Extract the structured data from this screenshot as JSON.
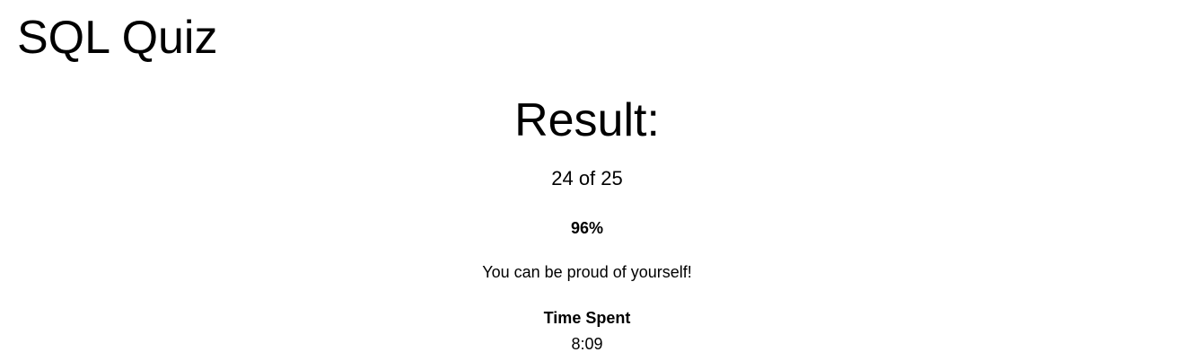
{
  "app": {
    "title": "SQL Quiz"
  },
  "result": {
    "heading": "Result:",
    "score_text": "24 of 25",
    "correct": 24,
    "total": 25,
    "percent_text": "96%",
    "message": "You can be proud of yourself!",
    "time_spent_label": "Time Spent",
    "time_spent_value": "8:09"
  }
}
